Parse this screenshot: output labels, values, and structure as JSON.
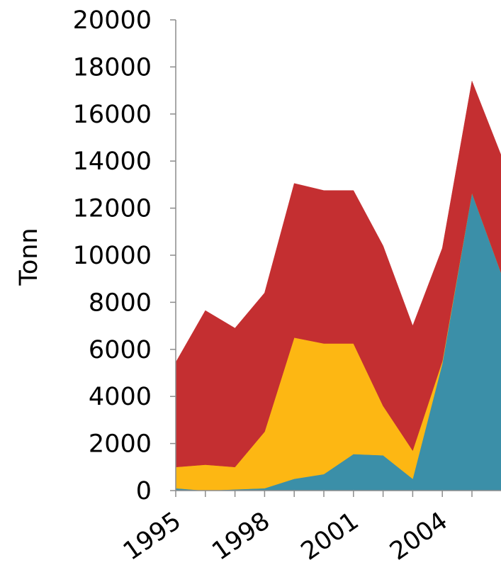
{
  "chart_data": {
    "type": "area",
    "stacked": true,
    "ylabel": "Tonn",
    "xlabel": "",
    "title": "",
    "ylim": [
      0,
      20000
    ],
    "yticks": [
      0,
      2000,
      4000,
      6000,
      8000,
      10000,
      12000,
      14000,
      16000,
      18000,
      20000
    ],
    "x": [
      1995,
      1996,
      1997,
      1998,
      1999,
      2000,
      2001,
      2002,
      2003,
      2004,
      2005,
      2006
    ],
    "xtick_labels": [
      "1995",
      "1998",
      "2001",
      "2004"
    ],
    "grid": false,
    "legend": "none",
    "series": [
      {
        "color": "#3b8fa8",
        "values": [
          100,
          0,
          50,
          100,
          500,
          700,
          1550,
          1500,
          500,
          5400,
          12650,
          9200
        ]
      },
      {
        "color": "#fdb713",
        "values": [
          900,
          1100,
          950,
          2400,
          6000,
          5550,
          4700,
          2100,
          1200,
          100,
          0,
          0
        ]
      },
      {
        "color": "#c42f31",
        "values": [
          4450,
          6550,
          5900,
          5900,
          6550,
          6500,
          6500,
          6800,
          5300,
          4800,
          4750,
          5000
        ]
      }
    ]
  }
}
